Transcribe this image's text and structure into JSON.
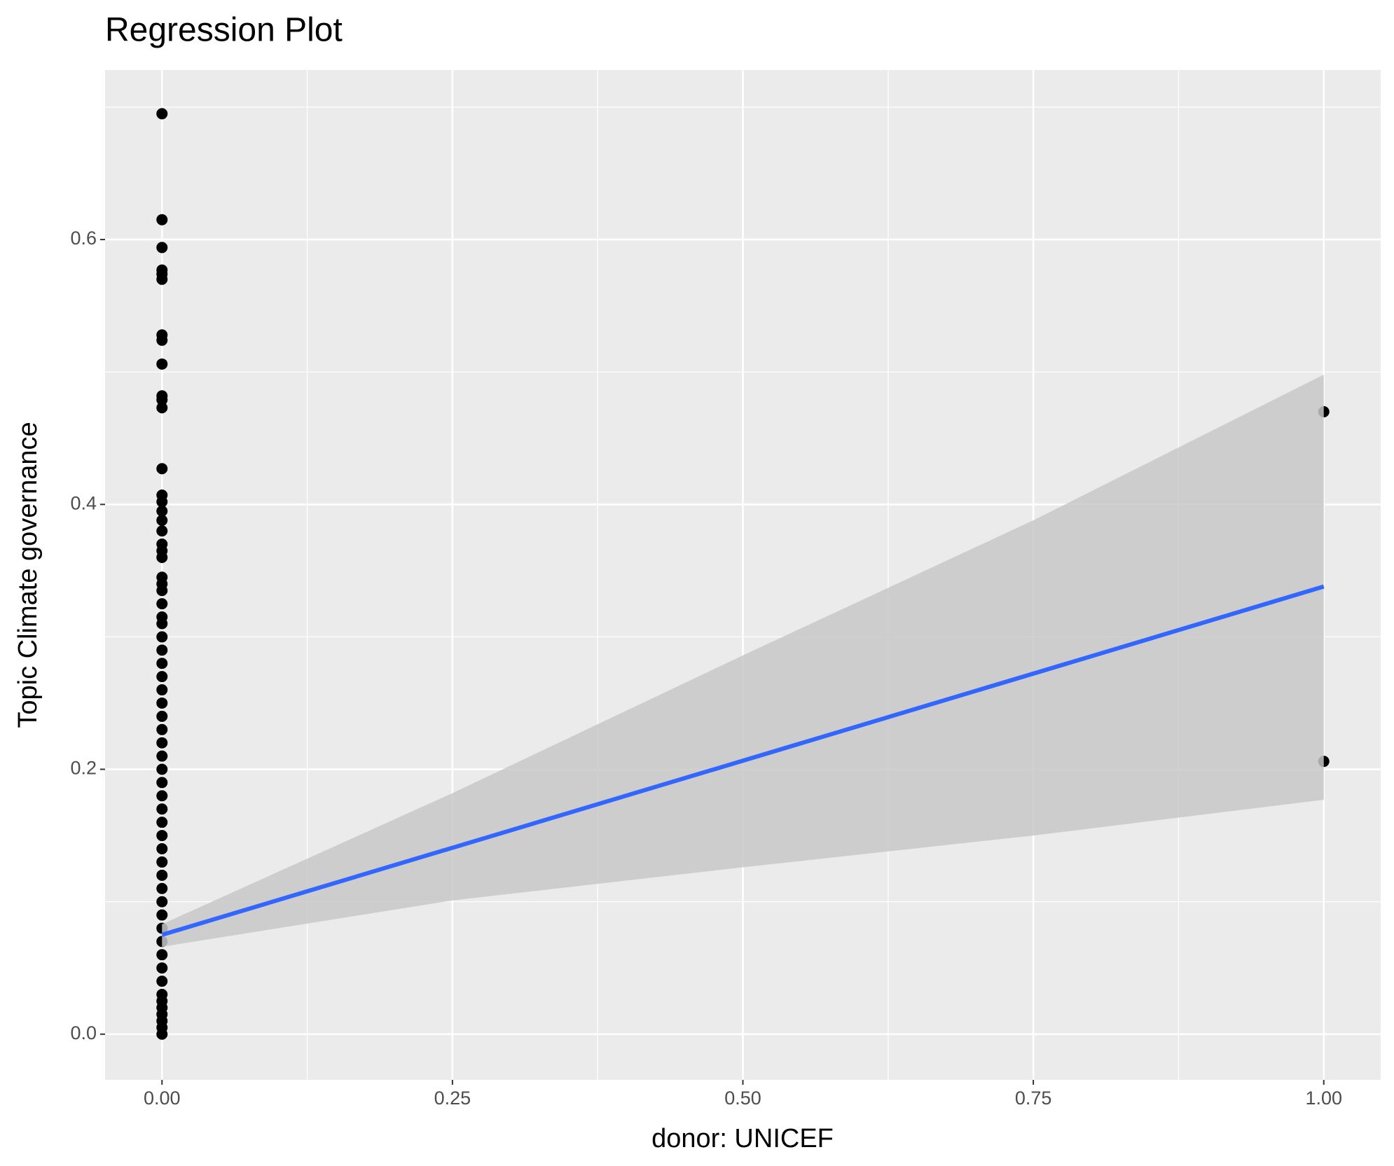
{
  "chart_data": {
    "type": "scatter",
    "title": "Regression Plot",
    "x_label": "donor: UNICEF",
    "y_label": "Topic Climate governance",
    "xlim": [
      -0.049,
      1.049
    ],
    "ylim": [
      -0.0345,
      0.728
    ],
    "xticks": [
      {
        "value": 0,
        "label": "0.00"
      },
      0.25,
      {
        "value": 0.5,
        "label": "0.50"
      },
      0.75,
      {
        "value": 1,
        "label": "1.00"
      }
    ],
    "yticks": [
      {
        "value": 0,
        "label": "0.0"
      },
      0.2,
      0.4,
      0.6
    ],
    "grid": true,
    "point_color": "#000000",
    "fit_color": "#3366ff",
    "band_color": "#c8c8c8",
    "x": [
      0,
      0,
      0,
      0,
      0,
      0,
      0,
      0,
      0,
      0,
      0,
      0,
      0,
      0,
      0,
      0,
      0,
      0,
      0,
      0,
      0,
      0,
      0,
      0,
      0,
      0,
      0,
      0,
      0,
      0,
      0,
      0,
      0,
      0,
      0,
      0,
      0,
      0,
      0,
      0,
      0,
      0,
      0,
      0,
      0,
      0,
      0,
      0,
      0,
      0,
      0,
      0,
      0,
      0,
      0,
      0,
      0,
      0,
      0,
      0,
      0,
      1,
      1
    ],
    "y": [
      0.695,
      0.615,
      0.594,
      0.577,
      0.574,
      0.57,
      0.528,
      0.524,
      0.506,
      0.482,
      0.479,
      0.473,
      0.427,
      0.407,
      0.402,
      0.395,
      0.388,
      0.38,
      0.37,
      0.365,
      0.36,
      0.345,
      0.34,
      0.335,
      0.325,
      0.315,
      0.31,
      0.3,
      0.29,
      0.28,
      0.27,
      0.26,
      0.25,
      0.24,
      0.23,
      0.22,
      0.21,
      0.2,
      0.19,
      0.18,
      0.17,
      0.16,
      0.15,
      0.14,
      0.13,
      0.12,
      0.11,
      0.1,
      0.09,
      0.08,
      0.07,
      0.06,
      0.05,
      0.04,
      0.03,
      0.025,
      0.02,
      0.015,
      0.01,
      0.005,
      0,
      0.47,
      0.206
    ],
    "fit": {
      "x": [
        0,
        1
      ],
      "y": [
        0.075,
        0.338
      ]
    },
    "band": {
      "x": [
        0,
        0.25,
        0.5,
        0.75,
        1
      ],
      "lower": [
        0.066,
        0.101,
        0.126,
        0.15,
        0.177
      ],
      "upper": [
        0.083,
        0.182,
        0.286,
        0.388,
        0.498
      ]
    }
  }
}
